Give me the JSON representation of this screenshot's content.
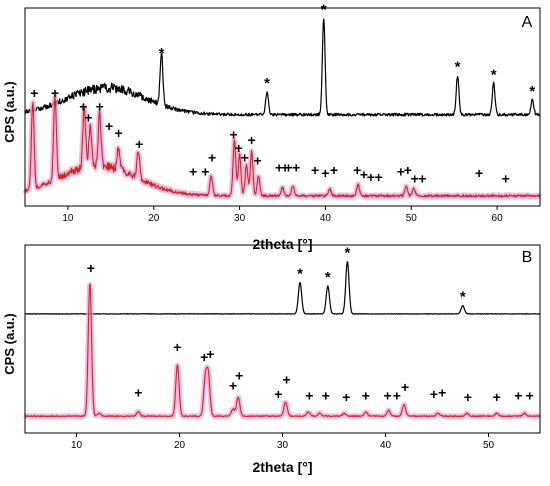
{
  "chart_data": [
    {
      "panel_label": "A",
      "type": "line",
      "xlabel": "2theta [°]",
      "ylabel": "CPS (a.u.)",
      "xlim": [
        5,
        65
      ],
      "xticks": [
        10,
        20,
        30,
        40,
        50,
        60
      ],
      "grid": false,
      "legend": "none",
      "series": [
        {
          "color": "#000000",
          "broad_hump": {
            "center": 14.5,
            "height": 0.24,
            "width": 4.5
          },
          "baseline": 0.03,
          "peaks": [
            {
              "x": 20.9,
              "height": 0.47
            },
            {
              "x": 33.2,
              "height": 0.2
            },
            {
              "x": 39.8,
              "height": 0.86
            },
            {
              "x": 55.4,
              "height": 0.35
            },
            {
              "x": 59.6,
              "height": 0.28
            },
            {
              "x": 64.1,
              "height": 0.13
            }
          ]
        },
        {
          "color": "#c8281e",
          "band_color": "#f0a0d8",
          "broad_hump": {
            "center": 13.5,
            "height": 0.22,
            "width": 4.5
          },
          "baseline": 0.03,
          "peaks": [
            {
              "x": 5.9,
              "height": 0.62
            },
            {
              "x": 8.5,
              "height": 0.6
            },
            {
              "x": 11.9,
              "height": 0.42
            },
            {
              "x": 12.6,
              "height": 0.3
            },
            {
              "x": 13.7,
              "height": 0.38
            },
            {
              "x": 15.9,
              "height": 0.16
            },
            {
              "x": 18.2,
              "height": 0.2
            },
            {
              "x": 26.7,
              "height": 0.14
            },
            {
              "x": 29.4,
              "height": 0.4
            },
            {
              "x": 30.0,
              "height": 0.3
            },
            {
              "x": 30.8,
              "height": 0.22
            },
            {
              "x": 31.4,
              "height": 0.32
            },
            {
              "x": 32.2,
              "height": 0.14
            },
            {
              "x": 35.0,
              "height": 0.06
            },
            {
              "x": 36.2,
              "height": 0.07
            },
            {
              "x": 40.5,
              "height": 0.05
            },
            {
              "x": 43.8,
              "height": 0.08
            },
            {
              "x": 49.4,
              "height": 0.07
            },
            {
              "x": 50.3,
              "height": 0.05
            }
          ]
        }
      ],
      "annotations": [
        {
          "text": "*",
          "x": 20.9,
          "series": 0
        },
        {
          "text": "*",
          "x": 33.2,
          "series": 0
        },
        {
          "text": "*",
          "x": 39.8,
          "series": 0
        },
        {
          "text": "*",
          "x": 55.4,
          "series": 0
        },
        {
          "text": "*",
          "x": 59.6,
          "series": 0
        },
        {
          "text": "*",
          "x": 64.1,
          "series": 0
        },
        {
          "text": "+",
          "x": 6.1,
          "series": 1,
          "y": 0.74
        },
        {
          "text": "+",
          "x": 8.5,
          "series": 1,
          "y": 0.74
        },
        {
          "text": "+",
          "x": 11.8,
          "series": 1,
          "y": 0.64
        },
        {
          "text": "+",
          "x": 12.4,
          "series": 1,
          "y": 0.56
        },
        {
          "text": "+",
          "x": 13.7,
          "series": 1,
          "y": 0.64
        },
        {
          "text": "+",
          "x": 14.8,
          "series": 1,
          "y": 0.5
        },
        {
          "text": "+",
          "x": 15.9,
          "series": 1,
          "y": 0.45
        },
        {
          "text": "+",
          "x": 18.3,
          "series": 1,
          "y": 0.37
        },
        {
          "text": "+",
          "x": 24.6,
          "series": 1,
          "y": 0.17
        },
        {
          "text": "+",
          "x": 26.0,
          "series": 1,
          "y": 0.17
        },
        {
          "text": "+",
          "x": 26.8,
          "series": 1,
          "y": 0.27
        },
        {
          "text": "+",
          "x": 29.3,
          "series": 1,
          "y": 0.44
        },
        {
          "text": "+",
          "x": 29.9,
          "series": 1,
          "y": 0.34
        },
        {
          "text": "+",
          "x": 30.6,
          "series": 1,
          "y": 0.27
        },
        {
          "text": "+",
          "x": 31.4,
          "series": 1,
          "y": 0.4
        },
        {
          "text": "+",
          "x": 32.1,
          "series": 1,
          "y": 0.25
        },
        {
          "text": "+",
          "x": 34.6,
          "series": 1,
          "y": 0.2
        },
        {
          "text": "+",
          "x": 35.3,
          "series": 1,
          "y": 0.2
        },
        {
          "text": "+",
          "x": 35.7,
          "series": 1,
          "y": 0.2
        },
        {
          "text": "+",
          "x": 36.6,
          "series": 1,
          "y": 0.2
        },
        {
          "text": "+",
          "x": 38.8,
          "series": 1,
          "y": 0.18
        },
        {
          "text": "+",
          "x": 40.0,
          "series": 1,
          "y": 0.16
        },
        {
          "text": "+",
          "x": 41.0,
          "series": 1,
          "y": 0.18
        },
        {
          "text": "+",
          "x": 43.7,
          "series": 1,
          "y": 0.18
        },
        {
          "text": "+",
          "x": 44.5,
          "series": 1,
          "y": 0.15
        },
        {
          "text": "+",
          "x": 45.3,
          "series": 1,
          "y": 0.13
        },
        {
          "text": "+",
          "x": 46.2,
          "series": 1,
          "y": 0.13
        },
        {
          "text": "+",
          "x": 48.8,
          "series": 1,
          "y": 0.17
        },
        {
          "text": "+",
          "x": 49.6,
          "series": 1,
          "y": 0.18
        },
        {
          "text": "+",
          "x": 50.4,
          "series": 1,
          "y": 0.12
        },
        {
          "text": "+",
          "x": 51.3,
          "series": 1,
          "y": 0.12
        },
        {
          "text": "+",
          "x": 57.9,
          "series": 1,
          "y": 0.16
        },
        {
          "text": "+",
          "x": 61.0,
          "series": 1,
          "y": 0.12
        }
      ]
    },
    {
      "panel_label": "B",
      "type": "line",
      "xlabel": "2theta [°]",
      "ylabel": "CPS (a.u.)",
      "xlim": [
        5,
        55
      ],
      "xticks": [
        10,
        20,
        30,
        40,
        50
      ],
      "grid": false,
      "legend": "none",
      "series": [
        {
          "color": "#000000",
          "baseline": 0.03,
          "peaks": [
            {
              "x": 31.7,
              "height": 0.45
            },
            {
              "x": 34.4,
              "height": 0.4
            },
            {
              "x": 36.3,
              "height": 0.75
            },
            {
              "x": 47.5,
              "height": 0.12
            }
          ]
        },
        {
          "color": "#c8281e",
          "band_color": "#f0a0d8",
          "baseline": 0.02,
          "peaks": [
            {
              "x": 11.3,
              "height": 0.93
            },
            {
              "x": 12.2,
              "height": 0.02
            },
            {
              "x": 16.0,
              "height": 0.03
            },
            {
              "x": 19.8,
              "height": 0.36
            },
            {
              "x": 22.5,
              "height": 0.25
            },
            {
              "x": 22.8,
              "height": 0.28
            },
            {
              "x": 25.2,
              "height": 0.05
            },
            {
              "x": 25.7,
              "height": 0.13
            },
            {
              "x": 30.3,
              "height": 0.1
            },
            {
              "x": 32.5,
              "height": 0.03
            },
            {
              "x": 33.6,
              "height": 0.02
            },
            {
              "x": 36.0,
              "height": 0.02
            },
            {
              "x": 38.1,
              "height": 0.03
            },
            {
              "x": 40.3,
              "height": 0.04
            },
            {
              "x": 41.8,
              "height": 0.08
            },
            {
              "x": 45.1,
              "height": 0.02
            },
            {
              "x": 47.9,
              "height": 0.02
            },
            {
              "x": 50.8,
              "height": 0.02
            },
            {
              "x": 53.5,
              "height": 0.02
            }
          ]
        }
      ],
      "annotations": [
        {
          "text": "*",
          "x": 31.7,
          "series": 0
        },
        {
          "text": "*",
          "x": 34.4,
          "series": 0
        },
        {
          "text": "*",
          "x": 36.3,
          "series": 0
        },
        {
          "text": "*",
          "x": 47.5,
          "series": 0
        },
        {
          "text": "+",
          "x": 11.4,
          "series": 1,
          "y": 1.02
        },
        {
          "text": "+",
          "x": 16.0,
          "series": 1,
          "y": 0.15
        },
        {
          "text": "+",
          "x": 19.8,
          "series": 1,
          "y": 0.47
        },
        {
          "text": "+",
          "x": 22.4,
          "series": 1,
          "y": 0.4
        },
        {
          "text": "+",
          "x": 23.0,
          "series": 1,
          "y": 0.42
        },
        {
          "text": "+",
          "x": 25.2,
          "series": 1,
          "y": 0.2
        },
        {
          "text": "+",
          "x": 25.8,
          "series": 1,
          "y": 0.27
        },
        {
          "text": "+",
          "x": 29.6,
          "series": 1,
          "y": 0.14
        },
        {
          "text": "+",
          "x": 30.4,
          "series": 1,
          "y": 0.24
        },
        {
          "text": "+",
          "x": 32.6,
          "series": 1,
          "y": 0.13
        },
        {
          "text": "+",
          "x": 34.2,
          "series": 1,
          "y": 0.13
        },
        {
          "text": "+",
          "x": 36.2,
          "series": 1,
          "y": 0.12
        },
        {
          "text": "+",
          "x": 38.1,
          "series": 1,
          "y": 0.13
        },
        {
          "text": "+",
          "x": 40.2,
          "series": 1,
          "y": 0.13
        },
        {
          "text": "+",
          "x": 41.1,
          "series": 1,
          "y": 0.13
        },
        {
          "text": "+",
          "x": 41.9,
          "series": 1,
          "y": 0.19
        },
        {
          "text": "+",
          "x": 44.7,
          "series": 1,
          "y": 0.14
        },
        {
          "text": "+",
          "x": 45.5,
          "series": 1,
          "y": 0.15
        },
        {
          "text": "+",
          "x": 48.0,
          "series": 1,
          "y": 0.12
        },
        {
          "text": "+",
          "x": 50.8,
          "series": 1,
          "y": 0.12
        },
        {
          "text": "+",
          "x": 52.9,
          "series": 1,
          "y": 0.13
        },
        {
          "text": "+",
          "x": 54.0,
          "series": 1,
          "y": 0.13
        }
      ]
    }
  ]
}
